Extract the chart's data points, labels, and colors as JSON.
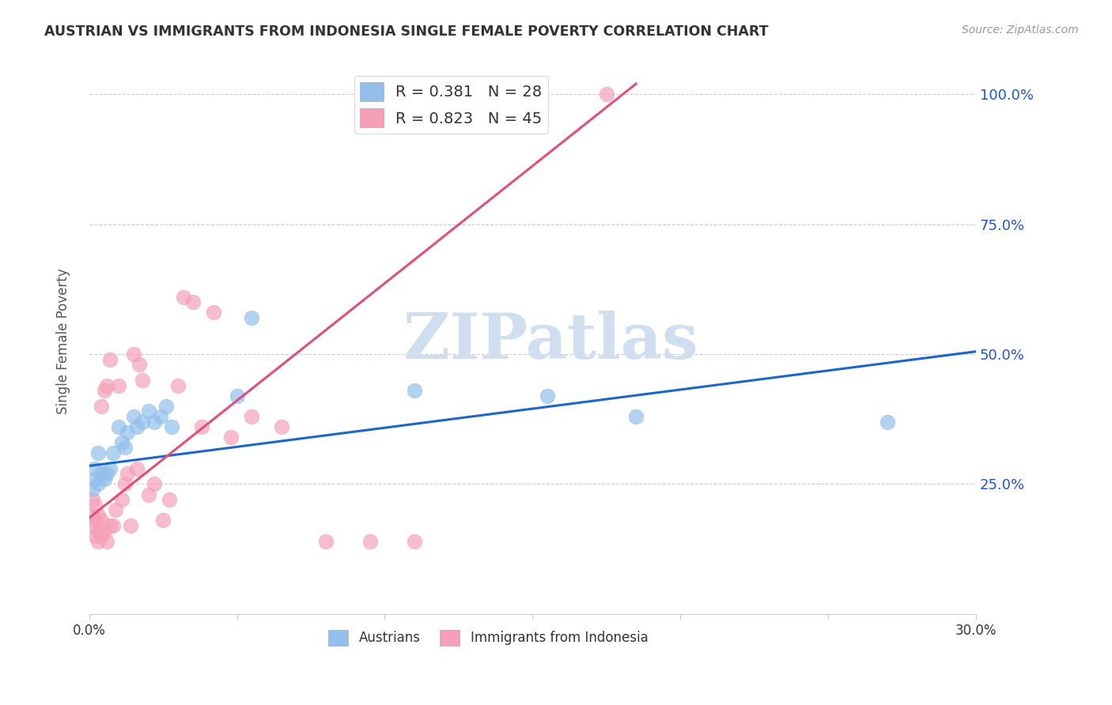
{
  "title": "AUSTRIAN VS IMMIGRANTS FROM INDONESIA SINGLE FEMALE POVERTY CORRELATION CHART",
  "source": "Source: ZipAtlas.com",
  "ylabel": "Single Female Poverty",
  "xlim": [
    0.0,
    0.3
  ],
  "ylim": [
    0.0,
    1.05
  ],
  "ytick_vals": [
    0.25,
    0.5,
    0.75,
    1.0
  ],
  "ytick_labels": [
    "25.0%",
    "50.0%",
    "75.0%",
    "100.0%"
  ],
  "xtick_vals": [
    0.0,
    0.05,
    0.1,
    0.15,
    0.2,
    0.25,
    0.3
  ],
  "xtick_labels": [
    "0.0%",
    "",
    "",
    "",
    "",
    "",
    "30.0%"
  ],
  "background_color": "#ffffff",
  "grid_color": "#cccccc",
  "watermark_text": "ZIPatlas",
  "watermark_color": "#d0dff0",
  "legend_R1": "R = 0.381",
  "legend_N1": "N = 28",
  "legend_R2": "R = 0.823",
  "legend_N2": "N = 45",
  "austrians_color": "#92bfec",
  "indonesia_color": "#f5a0b8",
  "trend_blue": "#1a66cc",
  "trend_pink": "#e0507a",
  "aus_trend_x": [
    0.0,
    0.3
  ],
  "aus_trend_y": [
    0.285,
    0.505
  ],
  "ind_trend_x": [
    0.0,
    0.185
  ],
  "ind_trend_y": [
    0.185,
    1.02
  ],
  "austrians_x": [
    0.001,
    0.002,
    0.003,
    0.003,
    0.004,
    0.005,
    0.006,
    0.007,
    0.008,
    0.01,
    0.011,
    0.012,
    0.013,
    0.015,
    0.016,
    0.018,
    0.02,
    0.022,
    0.024,
    0.026,
    0.028,
    0.05,
    0.055,
    0.11,
    0.155,
    0.185,
    0.27,
    0.002
  ],
  "austrians_y": [
    0.24,
    0.26,
    0.25,
    0.31,
    0.27,
    0.26,
    0.27,
    0.28,
    0.31,
    0.36,
    0.33,
    0.32,
    0.35,
    0.38,
    0.36,
    0.37,
    0.39,
    0.37,
    0.38,
    0.4,
    0.36,
    0.42,
    0.57,
    0.43,
    0.42,
    0.38,
    0.37,
    0.28
  ],
  "indonesia_x": [
    0.001,
    0.001,
    0.001,
    0.002,
    0.002,
    0.002,
    0.003,
    0.003,
    0.003,
    0.004,
    0.004,
    0.004,
    0.005,
    0.005,
    0.006,
    0.006,
    0.007,
    0.007,
    0.008,
    0.009,
    0.01,
    0.011,
    0.012,
    0.013,
    0.014,
    0.015,
    0.016,
    0.017,
    0.018,
    0.02,
    0.022,
    0.025,
    0.027,
    0.03,
    0.032,
    0.035,
    0.038,
    0.042,
    0.048,
    0.055,
    0.065,
    0.08,
    0.095,
    0.11,
    0.175
  ],
  "indonesia_y": [
    0.17,
    0.19,
    0.22,
    0.15,
    0.18,
    0.21,
    0.14,
    0.16,
    0.19,
    0.15,
    0.18,
    0.4,
    0.16,
    0.43,
    0.14,
    0.44,
    0.17,
    0.49,
    0.17,
    0.2,
    0.44,
    0.22,
    0.25,
    0.27,
    0.17,
    0.5,
    0.28,
    0.48,
    0.45,
    0.23,
    0.25,
    0.18,
    0.22,
    0.44,
    0.61,
    0.6,
    0.36,
    0.58,
    0.34,
    0.38,
    0.36,
    0.14,
    0.14,
    0.14,
    1.0
  ]
}
